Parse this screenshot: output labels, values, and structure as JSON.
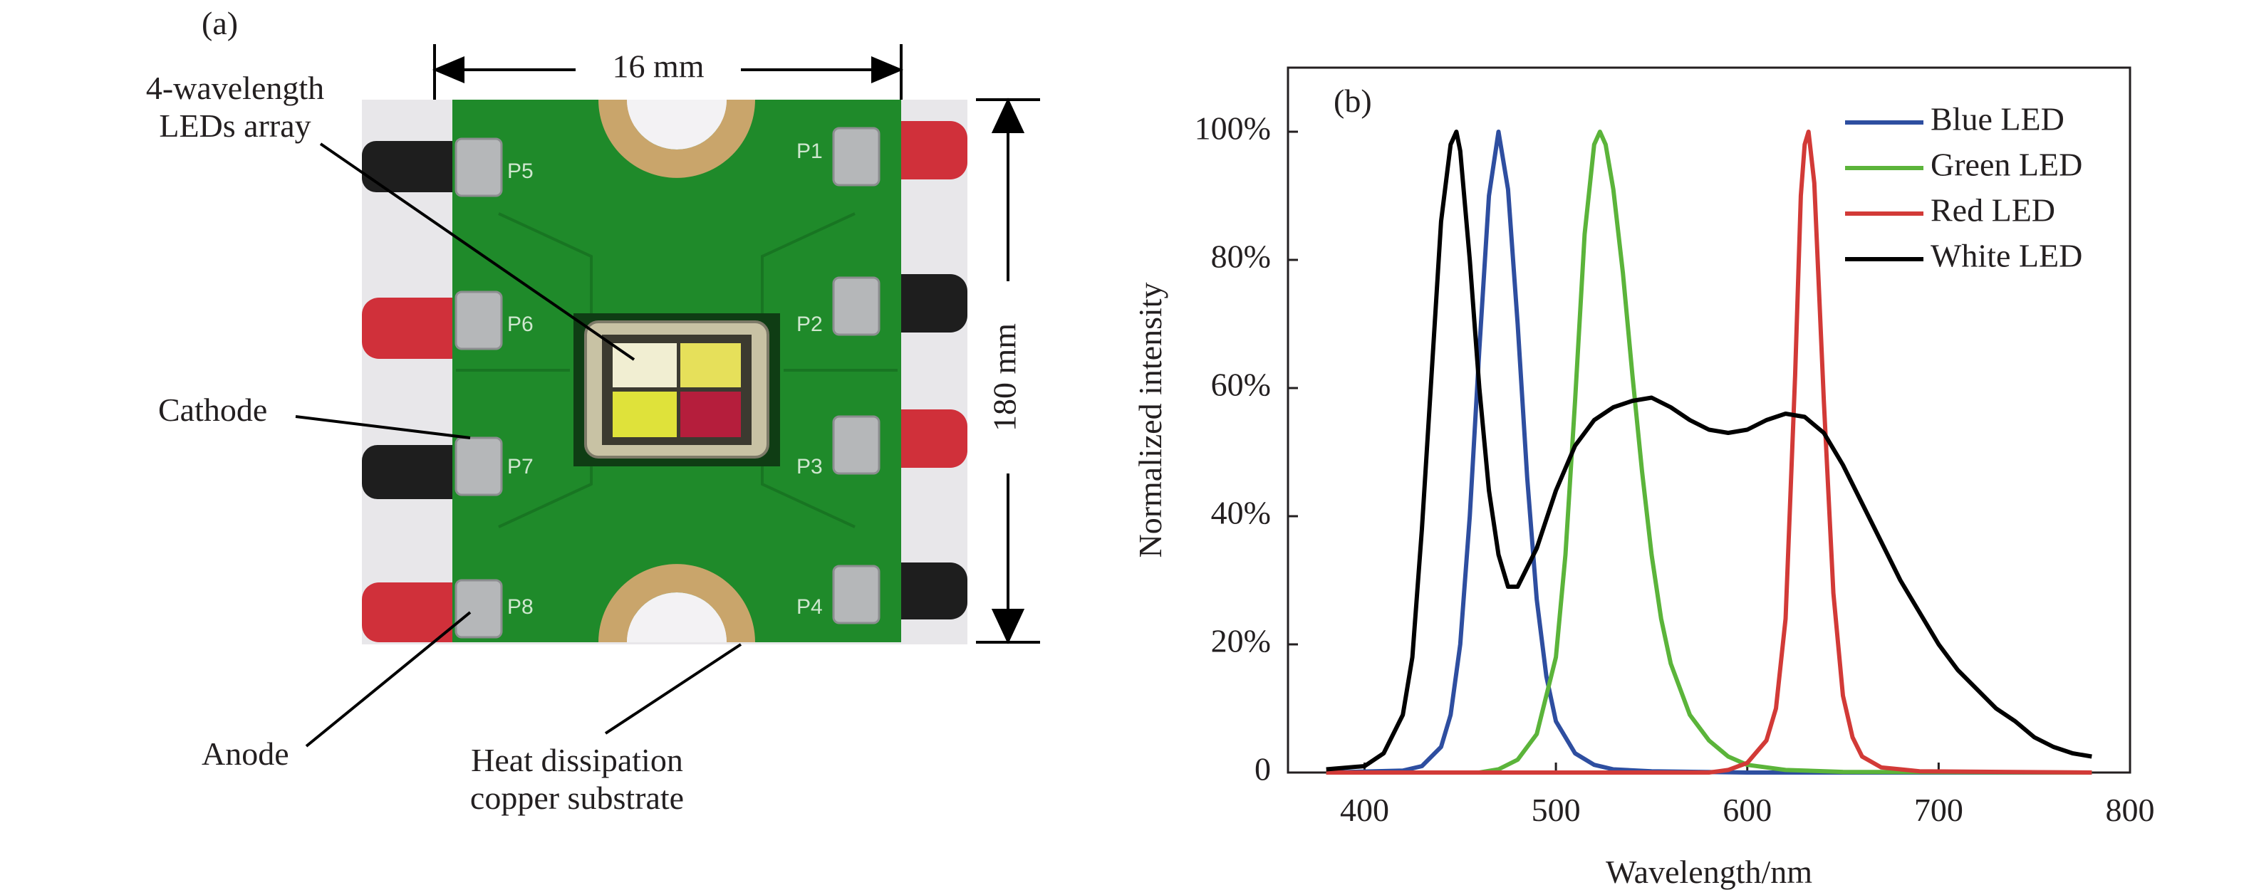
{
  "panel_a": {
    "label": "(a)",
    "width_label": "16 mm",
    "height_label": "180 mm",
    "annotations": {
      "led_array": [
        "4-wavelength",
        "LEDs array"
      ],
      "cathode": "Cathode",
      "anode": "Anode",
      "substrate": [
        "Heat dissipation",
        "copper substrate"
      ]
    },
    "pads": [
      "P5",
      "P6",
      "P7",
      "P8",
      "P1",
      "P2",
      "P3",
      "P4"
    ],
    "colors": {
      "pcb_green": "#1f8a2a",
      "copper": "#c9a56b",
      "red_wire": "#d0303a",
      "black_wire": "#1e1e1e"
    }
  },
  "chart_data": {
    "type": "line",
    "panel_label": "(b)",
    "title": "",
    "xlabel": "Wavelength/nm",
    "ylabel": "Normalized intensity",
    "xlim": [
      360,
      800
    ],
    "ylim": [
      0,
      1.1
    ],
    "x_ticks": [
      400,
      500,
      600,
      700,
      800
    ],
    "y_ticks": [
      0,
      0.2,
      0.4,
      0.6,
      0.8,
      1.0
    ],
    "y_tick_labels": [
      "0",
      "20%",
      "40%",
      "60%",
      "80%",
      "100%"
    ],
    "grid": false,
    "legend_position": "top-right",
    "series": [
      {
        "name": "Blue LED",
        "color": "#2e4ea0",
        "x": [
          380,
          420,
          430,
          440,
          445,
          450,
          455,
          460,
          465,
          470,
          475,
          480,
          485,
          490,
          495,
          500,
          510,
          520,
          530,
          550,
          600,
          780
        ],
        "y": [
          0,
          0.003,
          0.01,
          0.04,
          0.09,
          0.2,
          0.4,
          0.66,
          0.9,
          1.0,
          0.91,
          0.7,
          0.46,
          0.27,
          0.15,
          0.08,
          0.03,
          0.012,
          0.005,
          0.002,
          0,
          0
        ]
      },
      {
        "name": "Green LED",
        "color": "#5bb43a",
        "x": [
          380,
          460,
          470,
          480,
          490,
          500,
          505,
          510,
          515,
          520,
          523,
          526,
          530,
          535,
          540,
          545,
          550,
          555,
          560,
          570,
          580,
          590,
          600,
          620,
          650,
          780
        ],
        "y": [
          0,
          0,
          0.005,
          0.02,
          0.06,
          0.18,
          0.34,
          0.58,
          0.84,
          0.98,
          1.0,
          0.98,
          0.91,
          0.78,
          0.62,
          0.47,
          0.34,
          0.24,
          0.17,
          0.09,
          0.05,
          0.025,
          0.012,
          0.004,
          0.001,
          0
        ]
      },
      {
        "name": "Red LED",
        "color": "#d23a37",
        "x": [
          380,
          580,
          590,
          600,
          610,
          615,
          620,
          625,
          628,
          630,
          632,
          635,
          640,
          645,
          650,
          655,
          660,
          670,
          690,
          780
        ],
        "y": [
          0,
          0,
          0.004,
          0.015,
          0.05,
          0.1,
          0.24,
          0.62,
          0.9,
          0.98,
          1.0,
          0.92,
          0.58,
          0.28,
          0.12,
          0.055,
          0.025,
          0.008,
          0.002,
          0
        ]
      },
      {
        "name": "White LED",
        "color": "#000000",
        "x": [
          380,
          400,
          410,
          420,
          425,
          430,
          435,
          440,
          445,
          448,
          450,
          455,
          460,
          465,
          470,
          475,
          480,
          490,
          500,
          510,
          520,
          530,
          540,
          550,
          560,
          570,
          580,
          590,
          600,
          610,
          620,
          630,
          640,
          650,
          660,
          670,
          680,
          690,
          700,
          710,
          720,
          730,
          740,
          750,
          760,
          770,
          780
        ],
        "y": [
          0.005,
          0.01,
          0.03,
          0.09,
          0.18,
          0.38,
          0.62,
          0.86,
          0.98,
          1.0,
          0.97,
          0.8,
          0.6,
          0.44,
          0.34,
          0.29,
          0.29,
          0.35,
          0.44,
          0.51,
          0.55,
          0.57,
          0.58,
          0.585,
          0.57,
          0.55,
          0.535,
          0.53,
          0.535,
          0.55,
          0.56,
          0.555,
          0.53,
          0.48,
          0.42,
          0.36,
          0.3,
          0.25,
          0.2,
          0.16,
          0.13,
          0.1,
          0.08,
          0.055,
          0.04,
          0.03,
          0.025
        ]
      }
    ]
  }
}
